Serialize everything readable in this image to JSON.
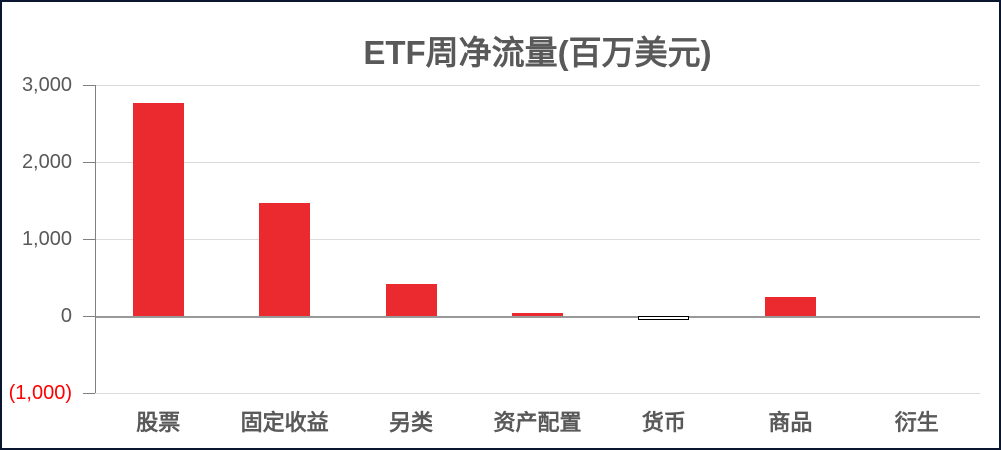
{
  "title": "ETF周净流量(百万美元)",
  "colors": {
    "bar_positive": "#eb2a30",
    "bar_negative_fill": "#ffffff",
    "bar_negative_border": "#000000",
    "title_text": "#595959",
    "axis_text": "#595959",
    "negative_tick_text": "#ff0000",
    "gridline": "#dcdcdc",
    "zero_axis_line": "#999999",
    "y_axis_line": "#808080",
    "frame_border": "#0a1630"
  },
  "chart_data": {
    "type": "bar",
    "title": "ETF周净流量(百万美元)",
    "categories": [
      "股票",
      "固定收益",
      "另类",
      "资产配置",
      "货币",
      "商品",
      "衍生"
    ],
    "values": [
      2770,
      1470,
      410,
      35,
      -50,
      250,
      0
    ],
    "xlabel": "",
    "ylabel": "",
    "ylim": [
      -1000,
      3000
    ],
    "ytick_interval": 1000,
    "ytick_labels": [
      "3,000",
      "2,000",
      "1,000",
      "0",
      "(1,000)"
    ],
    "grid": true,
    "legend": false,
    "negative_style": "invert-if-negative (white fill, black outline)",
    "bar_color": "#eb2a30"
  }
}
